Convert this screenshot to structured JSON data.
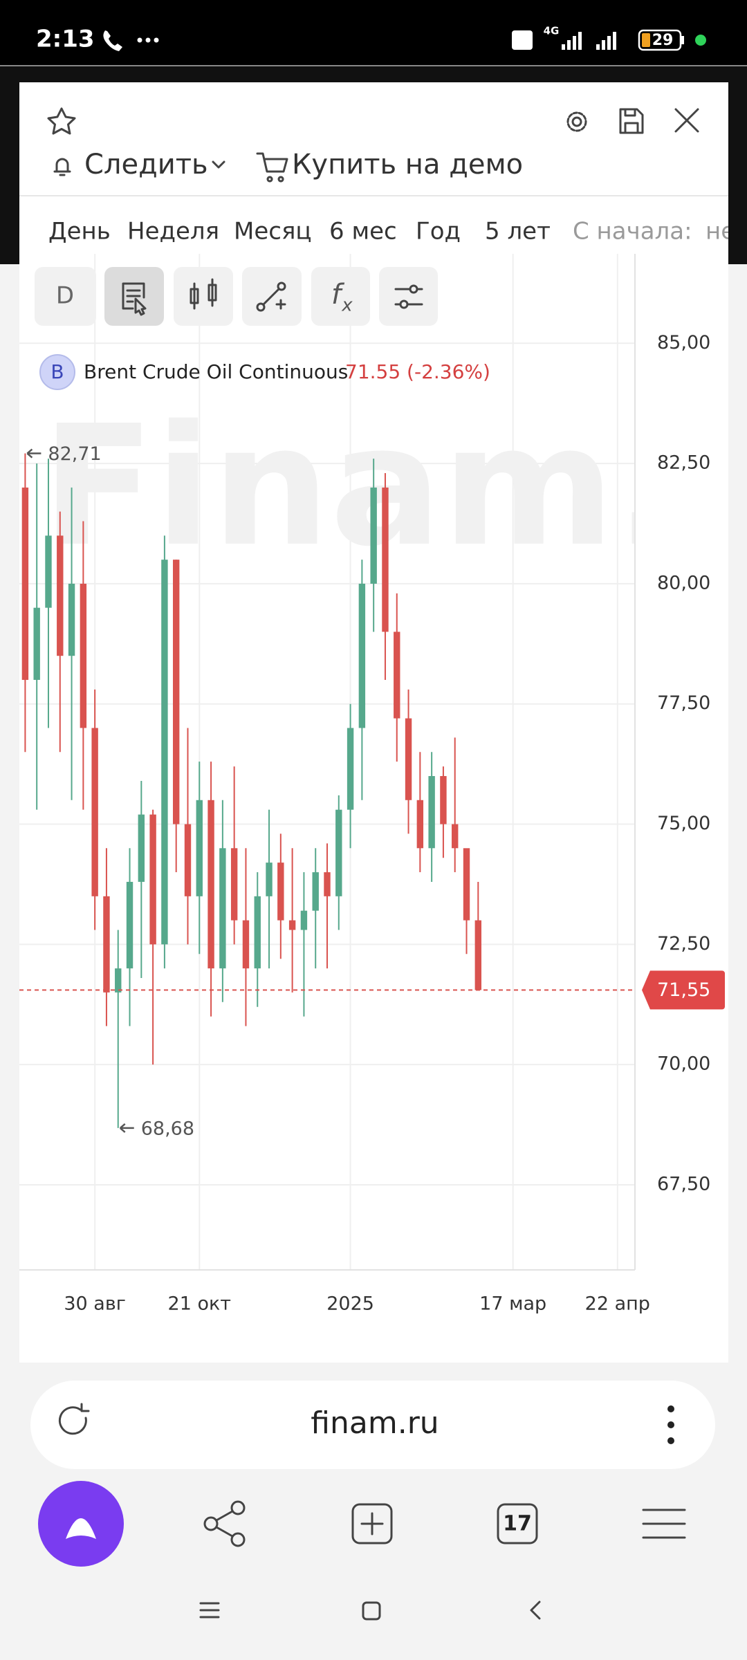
{
  "status_bar": {
    "time": "2:13",
    "network": "4G",
    "battery": "29"
  },
  "header": {
    "follow": "Следить",
    "buy": "Купить на демо"
  },
  "periods": [
    "День",
    "Неделя",
    "Месяц",
    "6 мес",
    "Год",
    "5 лет",
    "С начала:",
    "не"
  ],
  "toolbar": {
    "interval": "D",
    "function_f": "f",
    "function_x": "x"
  },
  "chart_data": {
    "type": "candlestick",
    "title": "Brent Crude Oil Continuous",
    "legend_badge": "B",
    "legend_price": "71.55 (-2.36%)",
    "watermark": "Finam.",
    "categories": [
      null,
      null,
      null,
      null,
      null,
      null,
      "30 авг",
      null,
      null,
      null,
      null,
      null,
      null,
      null,
      null,
      "21 окт",
      null,
      null,
      null,
      null,
      null,
      null,
      null,
      null,
      null,
      null,
      null,
      null,
      "2025",
      null,
      null,
      null,
      null,
      null,
      null,
      null,
      null,
      null,
      null,
      null,
      null,
      null,
      "17 мар",
      null,
      null,
      null,
      null,
      null,
      null,
      null,
      null,
      "22 апр",
      null
    ],
    "open": [
      82.0,
      78.0,
      79.5,
      81.0,
      78.5,
      80.0,
      77.0,
      73.5,
      71.5,
      72.0,
      73.8,
      75.2,
      72.5,
      80.5,
      75.0,
      73.5,
      75.5,
      72.0,
      74.5,
      73.0,
      72.0,
      73.5,
      74.2,
      73.0,
      72.8,
      73.2,
      74.0,
      73.5,
      75.3,
      77.0,
      80.0,
      82.0,
      79.0,
      77.2,
      75.5,
      74.5,
      76.0,
      75.0,
      74.5,
      73.0,
      null,
      null,
      null,
      null,
      null,
      null,
      null,
      null,
      null,
      null,
      null,
      null,
      null
    ],
    "high": [
      82.71,
      82.5,
      82.6,
      81.5,
      82.0,
      81.3,
      77.8,
      74.5,
      72.8,
      74.5,
      75.9,
      75.3,
      81.0,
      80.5,
      77.0,
      76.3,
      76.3,
      75.5,
      76.2,
      74.5,
      74.0,
      75.3,
      74.8,
      74.5,
      74.0,
      74.5,
      74.6,
      75.6,
      77.5,
      80.5,
      82.6,
      82.3,
      79.8,
      77.8,
      76.5,
      76.5,
      76.2,
      76.8,
      74.3,
      73.8,
      null,
      null,
      null,
      null,
      null,
      null,
      null,
      null,
      null,
      null,
      null,
      null,
      null
    ],
    "low": [
      76.5,
      75.3,
      77.0,
      76.5,
      75.5,
      75.3,
      72.8,
      70.8,
      68.68,
      70.8,
      71.8,
      70.0,
      72.0,
      74.0,
      72.5,
      72.3,
      71.0,
      71.3,
      72.5,
      70.8,
      71.2,
      72.0,
      72.2,
      71.5,
      71.0,
      72.0,
      72.0,
      72.8,
      74.5,
      75.5,
      79.0,
      78.0,
      76.3,
      74.8,
      74.0,
      73.8,
      74.3,
      74.0,
      72.3,
      71.55,
      null,
      null,
      null,
      null,
      null,
      null,
      null,
      null,
      null,
      null,
      null,
      null,
      null
    ],
    "close": [
      78.0,
      79.5,
      81.0,
      78.5,
      80.0,
      77.0,
      73.5,
      71.5,
      72.0,
      73.8,
      75.2,
      72.5,
      80.5,
      75.0,
      73.5,
      75.5,
      72.0,
      74.5,
      73.0,
      72.0,
      73.5,
      74.2,
      73.0,
      72.8,
      73.2,
      74.0,
      73.5,
      75.3,
      77.0,
      80.0,
      82.0,
      79.0,
      77.2,
      75.5,
      74.5,
      76.0,
      75.0,
      74.5,
      73.0,
      71.55,
      null,
      null,
      null,
      null,
      null,
      null,
      null,
      null,
      null,
      null,
      null,
      null,
      null
    ],
    "up_color": "#56a88c",
    "down_color": "#d9534f",
    "ylim": [
      65.73,
      86.86
    ],
    "yticks": [
      {
        "value": 67.5,
        "label": "67,50"
      },
      {
        "value": 70,
        "label": "70,00"
      },
      {
        "value": 72.5,
        "label": "72,50"
      },
      {
        "value": 75,
        "label": "75,00"
      },
      {
        "value": 77.5,
        "label": "77,50"
      },
      {
        "value": 80,
        "label": "80,00"
      },
      {
        "value": 82.5,
        "label": "82,50"
      },
      {
        "value": 85,
        "label": "85,00"
      }
    ],
    "grid": true,
    "last_price": {
      "value": 71.55,
      "label": "71,55"
    },
    "annotations": [
      {
        "value": 82.71,
        "label": "82,71"
      },
      {
        "value": 68.68,
        "label": "68,68"
      }
    ]
  },
  "browser": {
    "url": "finam.ru",
    "tabs": "17"
  }
}
